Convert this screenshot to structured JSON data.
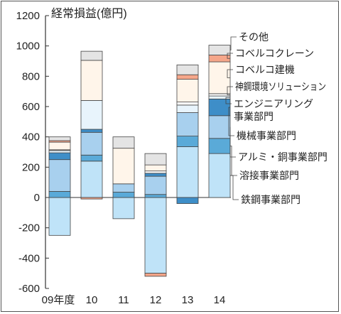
{
  "chart_data": {
    "type": "bar",
    "stacked": true,
    "title": "経常損益(億円)",
    "categories": [
      "09年度",
      "10",
      "11",
      "12",
      "13",
      "14"
    ],
    "ylim": [
      -600,
      1200
    ],
    "yticks": [
      -600,
      -400,
      -200,
      0,
      200,
      400,
      600,
      800,
      1000,
      1200
    ],
    "ytick_labels": [
      "-600",
      "-400",
      "-200",
      "0",
      "200",
      "400",
      "600",
      "800",
      "1000",
      "1200"
    ],
    "grid": false,
    "legend_position": "right",
    "series": [
      {
        "name": "鉄鋼事業部門",
        "color": "#bfe3f8",
        "values": [
          -250,
          240,
          -140,
          -500,
          335,
          290
        ]
      },
      {
        "name": "溶接事業部門",
        "color": "#5aaad8",
        "values": [
          40,
          40,
          35,
          20,
          70,
          100
        ]
      },
      {
        "name": "アルミ・銅事業部門",
        "color": "#a8d0ee",
        "values": [
          210,
          150,
          55,
          120,
          155,
          150
        ]
      },
      {
        "name": "機械事業部門",
        "color": "#3e8ec8",
        "values": [
          45,
          20,
          0,
          20,
          -40,
          110
        ]
      },
      {
        "name": "エンジニアリング事業部門",
        "color": "#e8f4fc",
        "values": [
          15,
          190,
          0,
          0,
          50,
          20
        ]
      },
      {
        "name": "神鋼環境ソリューション",
        "color": "#ffffff",
        "values": [
          5,
          0,
          0,
          15,
          20,
          15
        ]
      },
      {
        "name": "コベルコ建機",
        "color": "#fff5ea",
        "values": [
          50,
          265,
          235,
          40,
          150,
          210
        ]
      },
      {
        "name": "コベルコクレーン",
        "color": "#f5a68a",
        "values": [
          10,
          -10,
          0,
          -20,
          30,
          45
        ]
      },
      {
        "name": "その他",
        "color": "#e4e4e4",
        "values": [
          25,
          60,
          75,
          75,
          65,
          65
        ]
      }
    ]
  },
  "legend_order": [
    "その他",
    "コベルコクレーン",
    "コベルコ建機",
    "神鋼環境ソリューション",
    "エンジニアリング事業部門",
    "機械事業部門",
    "アルミ・銅事業部門",
    "溶接事業部門",
    "鉄鋼事業部門"
  ],
  "legend_lines": [
    [
      "その他"
    ],
    [
      "コベルコクレーン"
    ],
    [
      "コベルコ建機"
    ],
    [
      "神鋼環境ソリューション"
    ],
    [
      "エンジニアリング",
      "事業部門"
    ],
    [
      "機械事業部門"
    ],
    [
      "アルミ・銅事業部門"
    ],
    [
      "溶接事業部門"
    ],
    [
      "鉄鋼事業部門"
    ]
  ]
}
